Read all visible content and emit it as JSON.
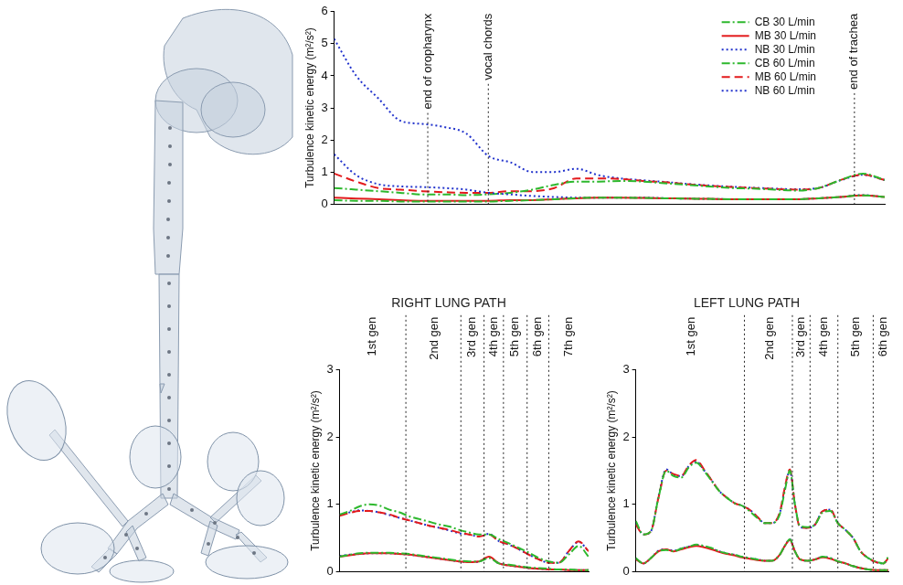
{
  "chart_data": [
    {
      "type": "line",
      "ylabel": "Turbulence kinetic energy (m²/s²)",
      "x": [
        0,
        4,
        8,
        12,
        16,
        20,
        24,
        28,
        32,
        36,
        40,
        44,
        48,
        52,
        56,
        60,
        64,
        68,
        72,
        76,
        80,
        84,
        88,
        92,
        96,
        100
      ],
      "xlim": [
        0,
        100
      ],
      "ylim": [
        0,
        6
      ],
      "yticks": [
        0,
        1,
        2,
        3,
        4,
        5,
        6
      ],
      "grid": false,
      "tick_labels": "y",
      "legend": "top right",
      "annotations": [
        {
          "text": "end of oropharynx",
          "x": 17
        },
        {
          "text": "vocal chords",
          "x": 28
        },
        {
          "text": "end of trachea",
          "x": 94.5
        }
      ],
      "vlines": [
        17,
        28,
        94.5
      ],
      "series": [
        {
          "name": "CB 30 L/min",
          "color": "#2db82d",
          "line_style": "dashdot",
          "values": [
            0.12,
            0.1,
            0.1,
            0.08,
            0.08,
            0.08,
            0.08,
            0.08,
            0.1,
            0.12,
            0.15,
            0.18,
            0.2,
            0.2,
            0.19,
            0.18,
            0.17,
            0.16,
            0.15,
            0.15,
            0.15,
            0.15,
            0.18,
            0.22,
            0.27,
            0.22
          ]
        },
        {
          "name": "MB 30 L/min",
          "color": "#e31a1c",
          "line_style": "solid",
          "values": [
            0.2,
            0.17,
            0.15,
            0.12,
            0.1,
            0.1,
            0.1,
            0.1,
            0.12,
            0.12,
            0.15,
            0.18,
            0.2,
            0.2,
            0.19,
            0.18,
            0.17,
            0.16,
            0.15,
            0.15,
            0.15,
            0.15,
            0.18,
            0.22,
            0.27,
            0.22
          ]
        },
        {
          "name": "NB 30 L/min",
          "color": "#2233cc",
          "line_style": "dotted",
          "values": [
            1.55,
            0.9,
            0.62,
            0.55,
            0.53,
            0.5,
            0.45,
            0.35,
            0.3,
            0.25,
            0.22,
            0.2,
            0.2,
            0.2,
            0.2,
            0.18,
            0.17,
            0.16,
            0.15,
            0.15,
            0.15,
            0.15,
            0.18,
            0.22,
            0.28,
            0.22
          ]
        },
        {
          "name": "CB 60 L/min",
          "color": "#2db82d",
          "line_style": "dashdot",
          "values": [
            0.5,
            0.45,
            0.4,
            0.35,
            0.3,
            0.3,
            0.28,
            0.3,
            0.35,
            0.45,
            0.6,
            0.7,
            0.7,
            0.72,
            0.7,
            0.65,
            0.6,
            0.55,
            0.5,
            0.48,
            0.45,
            0.42,
            0.5,
            0.75,
            0.95,
            0.75
          ]
        },
        {
          "name": "MB 60 L/min",
          "color": "#e31a1c",
          "line_style": "dashed",
          "values": [
            0.95,
            0.7,
            0.5,
            0.45,
            0.4,
            0.37,
            0.35,
            0.35,
            0.4,
            0.4,
            0.5,
            0.8,
            0.8,
            0.78,
            0.72,
            0.68,
            0.62,
            0.57,
            0.53,
            0.5,
            0.47,
            0.45,
            0.5,
            0.75,
            0.92,
            0.75
          ]
        },
        {
          "name": "NB 60 L/min",
          "color": "#2233cc",
          "line_style": "dotted",
          "values": [
            5.15,
            4.0,
            3.3,
            2.6,
            2.5,
            2.4,
            2.2,
            1.5,
            1.3,
            1.0,
            1.0,
            1.1,
            0.9,
            0.8,
            0.74,
            0.69,
            0.63,
            0.58,
            0.54,
            0.51,
            0.48,
            0.46,
            0.5,
            0.74,
            0.91,
            0.75
          ]
        }
      ]
    },
    {
      "type": "line",
      "title": "RIGHT LUNG PATH",
      "ylabel": "Turbulence kinetic energy (m²/s²)",
      "x": [
        0,
        4,
        8,
        12,
        16,
        20,
        24,
        28,
        32,
        36,
        40,
        44,
        48,
        52,
        56,
        60,
        64,
        68,
        72,
        76,
        80,
        84,
        88,
        92,
        96,
        100
      ],
      "xlim": [
        0,
        100
      ],
      "ylim": [
        0,
        3
      ],
      "yticks": [
        0,
        1,
        2,
        3
      ],
      "grid": false,
      "tick_labels": "y",
      "annotations": [
        {
          "text": "1st gen",
          "x": 13
        },
        {
          "text": "2nd gen",
          "x": 38
        },
        {
          "text": "3rd gen",
          "x": 53.3
        },
        {
          "text": "4th gen",
          "x": 61.9
        },
        {
          "text": "5th gen",
          "x": 70.5
        },
        {
          "text": "6th gen",
          "x": 79.6
        },
        {
          "text": "7th gen",
          "x": 92
        }
      ],
      "vlines": [
        26.6,
        48.7,
        58,
        65.8,
        75.3,
        84
      ],
      "series": [
        {
          "name": "CB 30 L/min",
          "color": "#2db82d",
          "line_style": "dashdot",
          "values": [
            0.22,
            0.25,
            0.27,
            0.28,
            0.28,
            0.28,
            0.27,
            0.26,
            0.24,
            0.22,
            0.2,
            0.18,
            0.16,
            0.15,
            0.15,
            0.2,
            0.12,
            0.1,
            0.08,
            0.06,
            0.05,
            0.04,
            0.03,
            0.03,
            0.02,
            0.02
          ]
        },
        {
          "name": "MB 30 L/min",
          "color": "#e31a1c",
          "line_style": "solid",
          "values": [
            0.22,
            0.24,
            0.26,
            0.27,
            0.27,
            0.27,
            0.26,
            0.25,
            0.23,
            0.21,
            0.19,
            0.17,
            0.15,
            0.14,
            0.15,
            0.22,
            0.12,
            0.09,
            0.07,
            0.05,
            0.04,
            0.03,
            0.03,
            0.02,
            0.02,
            0.02
          ]
        },
        {
          "name": "NB 30 L/min",
          "color": "#2233cc",
          "line_style": "dotted",
          "values": [
            0.23,
            0.25,
            0.26,
            0.27,
            0.27,
            0.27,
            0.26,
            0.25,
            0.23,
            0.21,
            0.19,
            0.17,
            0.15,
            0.14,
            0.15,
            0.21,
            0.12,
            0.09,
            0.07,
            0.05,
            0.04,
            0.03,
            0.03,
            0.02,
            0.02,
            0.02
          ]
        },
        {
          "name": "CB 60 L/min",
          "color": "#2db82d",
          "line_style": "dashdot",
          "values": [
            0.85,
            0.9,
            0.97,
            1.0,
            0.98,
            0.92,
            0.88,
            0.82,
            0.78,
            0.74,
            0.7,
            0.67,
            0.62,
            0.58,
            0.55,
            0.55,
            0.48,
            0.42,
            0.35,
            0.28,
            0.2,
            0.15,
            0.13,
            0.25,
            0.38,
            0.22
          ]
        },
        {
          "name": "MB 60 L/min",
          "color": "#e31a1c",
          "line_style": "dashed",
          "values": [
            0.83,
            0.87,
            0.9,
            0.9,
            0.88,
            0.85,
            0.8,
            0.76,
            0.72,
            0.68,
            0.65,
            0.62,
            0.58,
            0.55,
            0.52,
            0.55,
            0.45,
            0.4,
            0.33,
            0.25,
            0.18,
            0.13,
            0.13,
            0.3,
            0.45,
            0.3
          ]
        },
        {
          "name": "NB 60 L/min",
          "color": "#2233cc",
          "line_style": "dotted",
          "values": [
            0.84,
            0.88,
            0.91,
            0.9,
            0.88,
            0.84,
            0.8,
            0.76,
            0.72,
            0.68,
            0.65,
            0.61,
            0.57,
            0.55,
            0.52,
            0.56,
            0.45,
            0.4,
            0.33,
            0.25,
            0.18,
            0.13,
            0.13,
            0.3,
            0.44,
            0.3
          ]
        }
      ]
    },
    {
      "type": "line",
      "title": "LEFT LUNG PATH",
      "ylabel": "Turbulence kinetic energy (m²/s²)",
      "x": [
        0,
        3,
        6,
        9,
        12,
        15,
        18,
        21,
        24,
        27,
        30,
        33,
        36,
        39,
        42,
        45,
        48,
        51,
        54,
        57,
        59,
        61,
        63,
        65,
        68,
        71,
        74,
        77,
        80,
        83,
        86,
        89,
        92,
        95,
        98,
        100
      ],
      "xlim": [
        0,
        100
      ],
      "ylim": [
        0,
        3
      ],
      "yticks": [
        0,
        1,
        2,
        3
      ],
      "grid": false,
      "tick_labels": "y",
      "annotations": [
        {
          "text": "1st gen",
          "x": 22
        },
        {
          "text": "2nd gen",
          "x": 53
        },
        {
          "text": "3rd gen",
          "x": 65.5
        },
        {
          "text": "4th gen",
          "x": 74.5
        },
        {
          "text": "5th gen",
          "x": 87
        },
        {
          "text": "6th gen",
          "x": 98
        }
      ],
      "vlines": [
        43,
        62,
        69,
        80,
        94
      ],
      "series": [
        {
          "name": "CB 30 L/min",
          "color": "#2db82d",
          "line_style": "dashdot",
          "values": [
            0.2,
            0.12,
            0.2,
            0.3,
            0.32,
            0.3,
            0.34,
            0.37,
            0.4,
            0.38,
            0.35,
            0.3,
            0.27,
            0.25,
            0.22,
            0.2,
            0.18,
            0.16,
            0.16,
            0.25,
            0.38,
            0.48,
            0.3,
            0.18,
            0.16,
            0.18,
            0.22,
            0.2,
            0.15,
            0.12,
            0.08,
            0.05,
            0.03,
            0.02,
            0.02,
            0.02
          ]
        },
        {
          "name": "MB 30 L/min",
          "color": "#e31a1c",
          "line_style": "solid",
          "values": [
            0.18,
            0.12,
            0.2,
            0.3,
            0.33,
            0.3,
            0.33,
            0.36,
            0.38,
            0.36,
            0.33,
            0.29,
            0.26,
            0.24,
            0.21,
            0.19,
            0.17,
            0.16,
            0.16,
            0.25,
            0.38,
            0.47,
            0.3,
            0.18,
            0.16,
            0.18,
            0.21,
            0.19,
            0.15,
            0.12,
            0.08,
            0.05,
            0.03,
            0.02,
            0.02,
            0.02
          ]
        },
        {
          "name": "NB 30 L/min",
          "color": "#2233cc",
          "line_style": "dotted",
          "values": [
            0.19,
            0.12,
            0.2,
            0.31,
            0.33,
            0.31,
            0.34,
            0.37,
            0.39,
            0.37,
            0.34,
            0.3,
            0.27,
            0.25,
            0.22,
            0.2,
            0.18,
            0.16,
            0.16,
            0.25,
            0.38,
            0.48,
            0.3,
            0.18,
            0.16,
            0.18,
            0.22,
            0.2,
            0.15,
            0.12,
            0.08,
            0.05,
            0.03,
            0.02,
            0.02,
            0.02
          ]
        },
        {
          "name": "CB 60 L/min",
          "color": "#2db82d",
          "line_style": "dashdot",
          "values": [
            0.75,
            0.55,
            0.6,
            1.1,
            1.5,
            1.42,
            1.4,
            1.55,
            1.62,
            1.5,
            1.35,
            1.2,
            1.1,
            1.02,
            0.98,
            0.9,
            0.8,
            0.72,
            0.72,
            0.85,
            1.2,
            1.5,
            1.0,
            0.68,
            0.66,
            0.7,
            0.88,
            0.9,
            0.72,
            0.62,
            0.5,
            0.3,
            0.2,
            0.15,
            0.12,
            0.22
          ]
        },
        {
          "name": "MB 60 L/min",
          "color": "#e31a1c",
          "line_style": "dashed",
          "values": [
            0.7,
            0.55,
            0.6,
            1.1,
            1.5,
            1.45,
            1.42,
            1.58,
            1.66,
            1.52,
            1.36,
            1.2,
            1.1,
            1.02,
            0.98,
            0.92,
            0.82,
            0.72,
            0.72,
            0.88,
            1.25,
            1.52,
            1.0,
            0.66,
            0.65,
            0.7,
            0.9,
            0.92,
            0.72,
            0.62,
            0.5,
            0.3,
            0.2,
            0.14,
            0.12,
            0.2
          ]
        },
        {
          "name": "NB 60 L/min",
          "color": "#2233cc",
          "line_style": "dotted",
          "values": [
            0.72,
            0.55,
            0.6,
            1.12,
            1.52,
            1.44,
            1.42,
            1.57,
            1.64,
            1.51,
            1.36,
            1.2,
            1.1,
            1.02,
            0.98,
            0.92,
            0.82,
            0.72,
            0.72,
            0.87,
            1.23,
            1.5,
            1.0,
            0.66,
            0.65,
            0.7,
            0.9,
            0.92,
            0.72,
            0.62,
            0.5,
            0.3,
            0.2,
            0.14,
            0.12,
            0.2
          ]
        }
      ]
    }
  ]
}
